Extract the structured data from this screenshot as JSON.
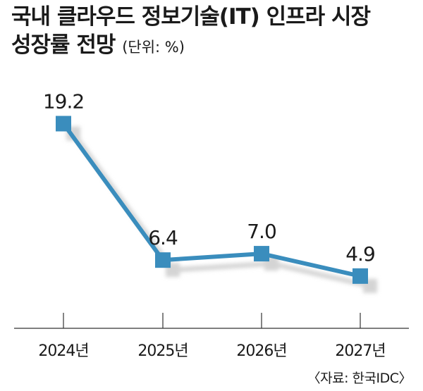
{
  "title": {
    "line1": "국내 클라우드 정보기술(IT) 인프라 시장",
    "line2": "성장률 전망",
    "unit": "(단위: %)"
  },
  "source": "〈자료: 한국IDC〉",
  "chart_data": {
    "type": "line",
    "categories": [
      "2024년",
      "2025년",
      "2026년",
      "2027년"
    ],
    "series": [
      {
        "values": [
          19.2,
          6.4,
          7.0,
          4.9
        ],
        "labels": [
          "19.2",
          "6.4",
          "7.0",
          "4.9"
        ]
      }
    ],
    "ylim": [
      0,
      23
    ],
    "grid": false,
    "legend": "none",
    "colors": {
      "line": "#3a8dbd",
      "marker": "#3a8dbd",
      "shadow": "#d4d4d4",
      "axis": "#333333"
    }
  }
}
